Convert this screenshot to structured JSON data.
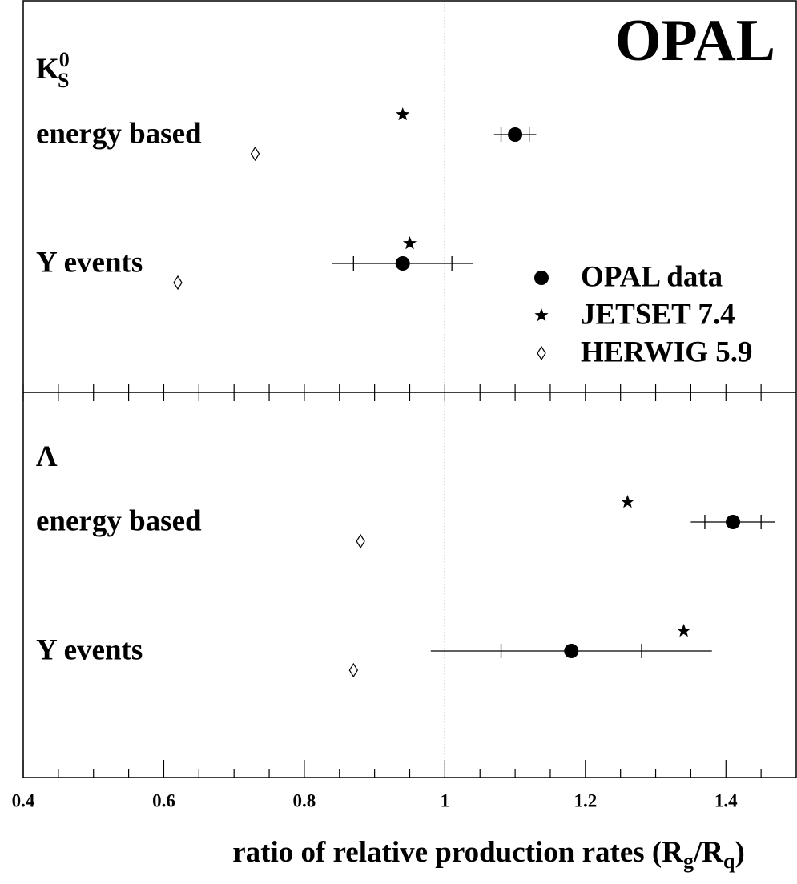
{
  "chart_data": {
    "type": "dot",
    "title": "OPAL",
    "xlabel": [
      "ratio of relative production rates (R",
      "g",
      "/R",
      "q",
      ")"
    ],
    "xlim": [
      0.4,
      1.5
    ],
    "xticks": [
      0.4,
      0.6,
      0.8,
      1,
      1.2,
      1.4
    ],
    "xminorticks": [
      0.45,
      0.5,
      0.55,
      0.65,
      0.7,
      0.75,
      0.85,
      0.9,
      0.95,
      1.05,
      1.1,
      1.15,
      1.25,
      1.3,
      1.35,
      1.45
    ],
    "reference_line": 1,
    "panels": [
      {
        "label": "K",
        "label_sub": "S",
        "label_sup": "0",
        "categories": [
          "energy based",
          "Y events"
        ]
      },
      {
        "label": "Λ",
        "categories": [
          "energy based",
          "Y events"
        ]
      }
    ],
    "legend": "upper right",
    "series": [
      {
        "name": "OPAL data",
        "color": "#000000",
        "marker": "circle",
        "values": [
          1.1,
          0.94,
          1.41,
          1.18
        ],
        "stat_errors": [
          0.02,
          0.07,
          0.04,
          0.1
        ],
        "errors": [
          0.03,
          0.1,
          0.06,
          0.2
        ]
      },
      {
        "name": "JETSET 7.4",
        "color": "#000000",
        "marker": "star",
        "values": [
          0.94,
          0.95,
          1.26,
          1.34
        ]
      },
      {
        "name": "HERWIG 5.9",
        "color": "#000000",
        "marker": "diamond",
        "values": [
          0.73,
          0.62,
          0.88,
          0.87
        ]
      }
    ]
  }
}
